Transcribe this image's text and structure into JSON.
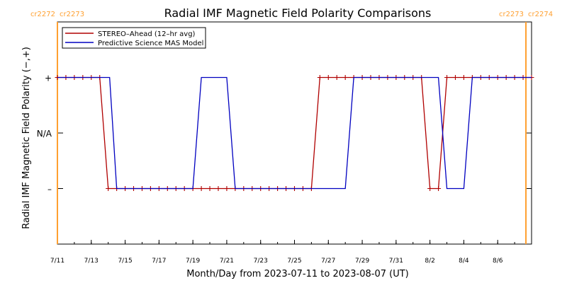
{
  "chart_data": {
    "type": "line",
    "title": "Radial IMF Magnetic Field Polarity Comparisons",
    "xlabel": "Month/Day from 2023-07-11 to 2023-08-07 (UT)",
    "ylabel": "Radial IMF Magnetic Field Polarity (−,+)",
    "x_range": [
      "2023-07-11",
      "2023-08-08"
    ],
    "x_ticks": [
      {
        "date": "2023-07-11",
        "label": "7/11"
      },
      {
        "date": "2023-07-13",
        "label": "7/13"
      },
      {
        "date": "2023-07-15",
        "label": "7/15"
      },
      {
        "date": "2023-07-17",
        "label": "7/17"
      },
      {
        "date": "2023-07-19",
        "label": "7/19"
      },
      {
        "date": "2023-07-21",
        "label": "7/21"
      },
      {
        "date": "2023-07-23",
        "label": "7/23"
      },
      {
        "date": "2023-07-25",
        "label": "7/25"
      },
      {
        "date": "2023-07-27",
        "label": "7/27"
      },
      {
        "date": "2023-07-29",
        "label": "7/29"
      },
      {
        "date": "2023-07-31",
        "label": "7/31"
      },
      {
        "date": "2023-08-02",
        "label": "8/2"
      },
      {
        "date": "2023-08-04",
        "label": "8/4"
      },
      {
        "date": "2023-08-06",
        "label": "8/6"
      }
    ],
    "y_range": [
      -2,
      2
    ],
    "y_ticks": [
      {
        "value": 1,
        "label": "+"
      },
      {
        "value": 0,
        "label": "N/A"
      },
      {
        "value": -1,
        "label": "–"
      }
    ],
    "carrington_markers": [
      {
        "date": "2023-07-11",
        "label_left": "cr2272",
        "label_right": "cr2273",
        "color": "#ffa030"
      },
      {
        "date": "2023-08-07 16:00",
        "label_left": "cr2273",
        "label_right": "cr2274",
        "color": "#ffa030"
      }
    ],
    "legend_position": "top-left",
    "series": [
      {
        "name": "STEREO–Ahead (12–hr avg)",
        "color": "#b00000",
        "marker": "plus",
        "points": [
          [
            "2023-07-11 00:00",
            1
          ],
          [
            "2023-07-11 12:00",
            1
          ],
          [
            "2023-07-12 00:00",
            1
          ],
          [
            "2023-07-12 12:00",
            1
          ],
          [
            "2023-07-13 00:00",
            1
          ],
          [
            "2023-07-13 12:00",
            1
          ],
          [
            "2023-07-14 00:00",
            -1
          ],
          [
            "2023-07-14 12:00",
            -1
          ],
          [
            "2023-07-15 00:00",
            -1
          ],
          [
            "2023-07-15 12:00",
            -1
          ],
          [
            "2023-07-16 00:00",
            -1
          ],
          [
            "2023-07-16 12:00",
            -1
          ],
          [
            "2023-07-17 00:00",
            -1
          ],
          [
            "2023-07-17 12:00",
            -1
          ],
          [
            "2023-07-18 00:00",
            -1
          ],
          [
            "2023-07-18 12:00",
            -1
          ],
          [
            "2023-07-19 00:00",
            -1
          ],
          [
            "2023-07-19 12:00",
            -1
          ],
          [
            "2023-07-20 00:00",
            -1
          ],
          [
            "2023-07-20 12:00",
            -1
          ],
          [
            "2023-07-21 00:00",
            -1
          ],
          [
            "2023-07-21 12:00",
            -1
          ],
          [
            "2023-07-22 00:00",
            -1
          ],
          [
            "2023-07-22 12:00",
            -1
          ],
          [
            "2023-07-23 00:00",
            -1
          ],
          [
            "2023-07-23 12:00",
            -1
          ],
          [
            "2023-07-24 00:00",
            -1
          ],
          [
            "2023-07-24 12:00",
            -1
          ],
          [
            "2023-07-25 00:00",
            -1
          ],
          [
            "2023-07-25 12:00",
            -1
          ],
          [
            "2023-07-26 00:00",
            -1
          ],
          [
            "2023-07-26 12:00",
            1
          ],
          [
            "2023-07-27 00:00",
            1
          ],
          [
            "2023-07-27 12:00",
            1
          ],
          [
            "2023-07-28 00:00",
            1
          ],
          [
            "2023-07-28 12:00",
            1
          ],
          [
            "2023-07-29 00:00",
            1
          ],
          [
            "2023-07-29 12:00",
            1
          ],
          [
            "2023-07-30 00:00",
            1
          ],
          [
            "2023-07-30 12:00",
            1
          ],
          [
            "2023-07-31 00:00",
            1
          ],
          [
            "2023-07-31 12:00",
            1
          ],
          [
            "2023-08-01 00:00",
            1
          ],
          [
            "2023-08-01 12:00",
            1
          ],
          [
            "2023-08-02 00:00",
            -1
          ],
          [
            "2023-08-02 12:00",
            -1
          ],
          [
            "2023-08-03 00:00",
            1
          ],
          [
            "2023-08-03 12:00",
            1
          ],
          [
            "2023-08-04 00:00",
            1
          ],
          [
            "2023-08-04 12:00",
            1
          ],
          [
            "2023-08-05 00:00",
            1
          ],
          [
            "2023-08-05 12:00",
            1
          ],
          [
            "2023-08-06 00:00",
            1
          ],
          [
            "2023-08-06 12:00",
            1
          ],
          [
            "2023-08-07 00:00",
            1
          ],
          [
            "2023-08-07 12:00",
            1
          ],
          [
            "2023-08-08 00:00",
            1
          ]
        ]
      },
      {
        "name": "Predictive Science MAS Model",
        "color": "#0000c0",
        "marker": "none",
        "points": [
          [
            "2023-07-11 00:00",
            1
          ],
          [
            "2023-07-14 02:00",
            1
          ],
          [
            "2023-07-14 12:00",
            -1
          ],
          [
            "2023-07-19 00:00",
            -1
          ],
          [
            "2023-07-19 12:00",
            1
          ],
          [
            "2023-07-21 00:00",
            1
          ],
          [
            "2023-07-21 12:00",
            -1
          ],
          [
            "2023-07-28 00:00",
            -1
          ],
          [
            "2023-07-28 12:00",
            1
          ],
          [
            "2023-08-02 12:00",
            1
          ],
          [
            "2023-08-03 00:00",
            -1
          ],
          [
            "2023-08-04 00:00",
            -1
          ],
          [
            "2023-08-04 12:00",
            1
          ],
          [
            "2023-08-08 00:00",
            1
          ]
        ]
      }
    ]
  }
}
